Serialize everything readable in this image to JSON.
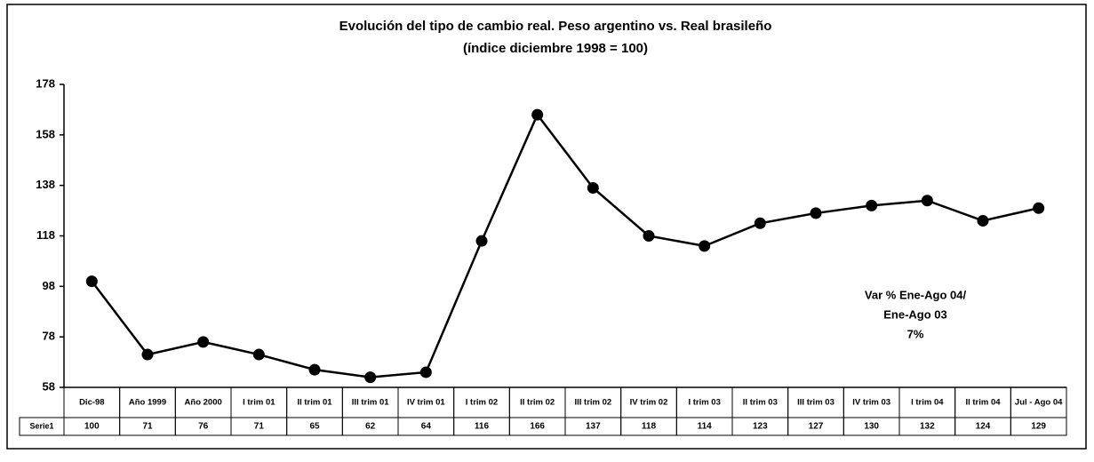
{
  "chart_data": {
    "type": "line",
    "title": "Evolución del tipo de cambio real. Peso argentino vs. Real brasileño",
    "subtitle": "(índice diciembre 1998 = 100)",
    "categories": [
      "Dic-98",
      "Año 1999",
      "Año 2000",
      "I trim 01",
      "II trim 01",
      "III trim 01",
      "IV trim 01",
      "I trim 02",
      "II trim 02",
      "III trim 02",
      "IV trim 02",
      "I trim 03",
      "II trim 03",
      "III trim 03",
      "IV trim 03",
      "I trim 04",
      "II trim 04",
      "Jul - Ago 04"
    ],
    "series": [
      {
        "name": "Serie1",
        "color": "#000000",
        "values": [
          100,
          71,
          76,
          71,
          65,
          62,
          64,
          116,
          166,
          137,
          118,
          114,
          123,
          127,
          130,
          132,
          124,
          129
        ]
      }
    ],
    "ylim": [
      58,
      178
    ],
    "yticks": [
      58,
      78,
      98,
      118,
      138,
      158,
      178
    ],
    "annotations": [
      "Var % Ene-Ago 04/",
      "Ene-Ago 03",
      "7%"
    ]
  }
}
